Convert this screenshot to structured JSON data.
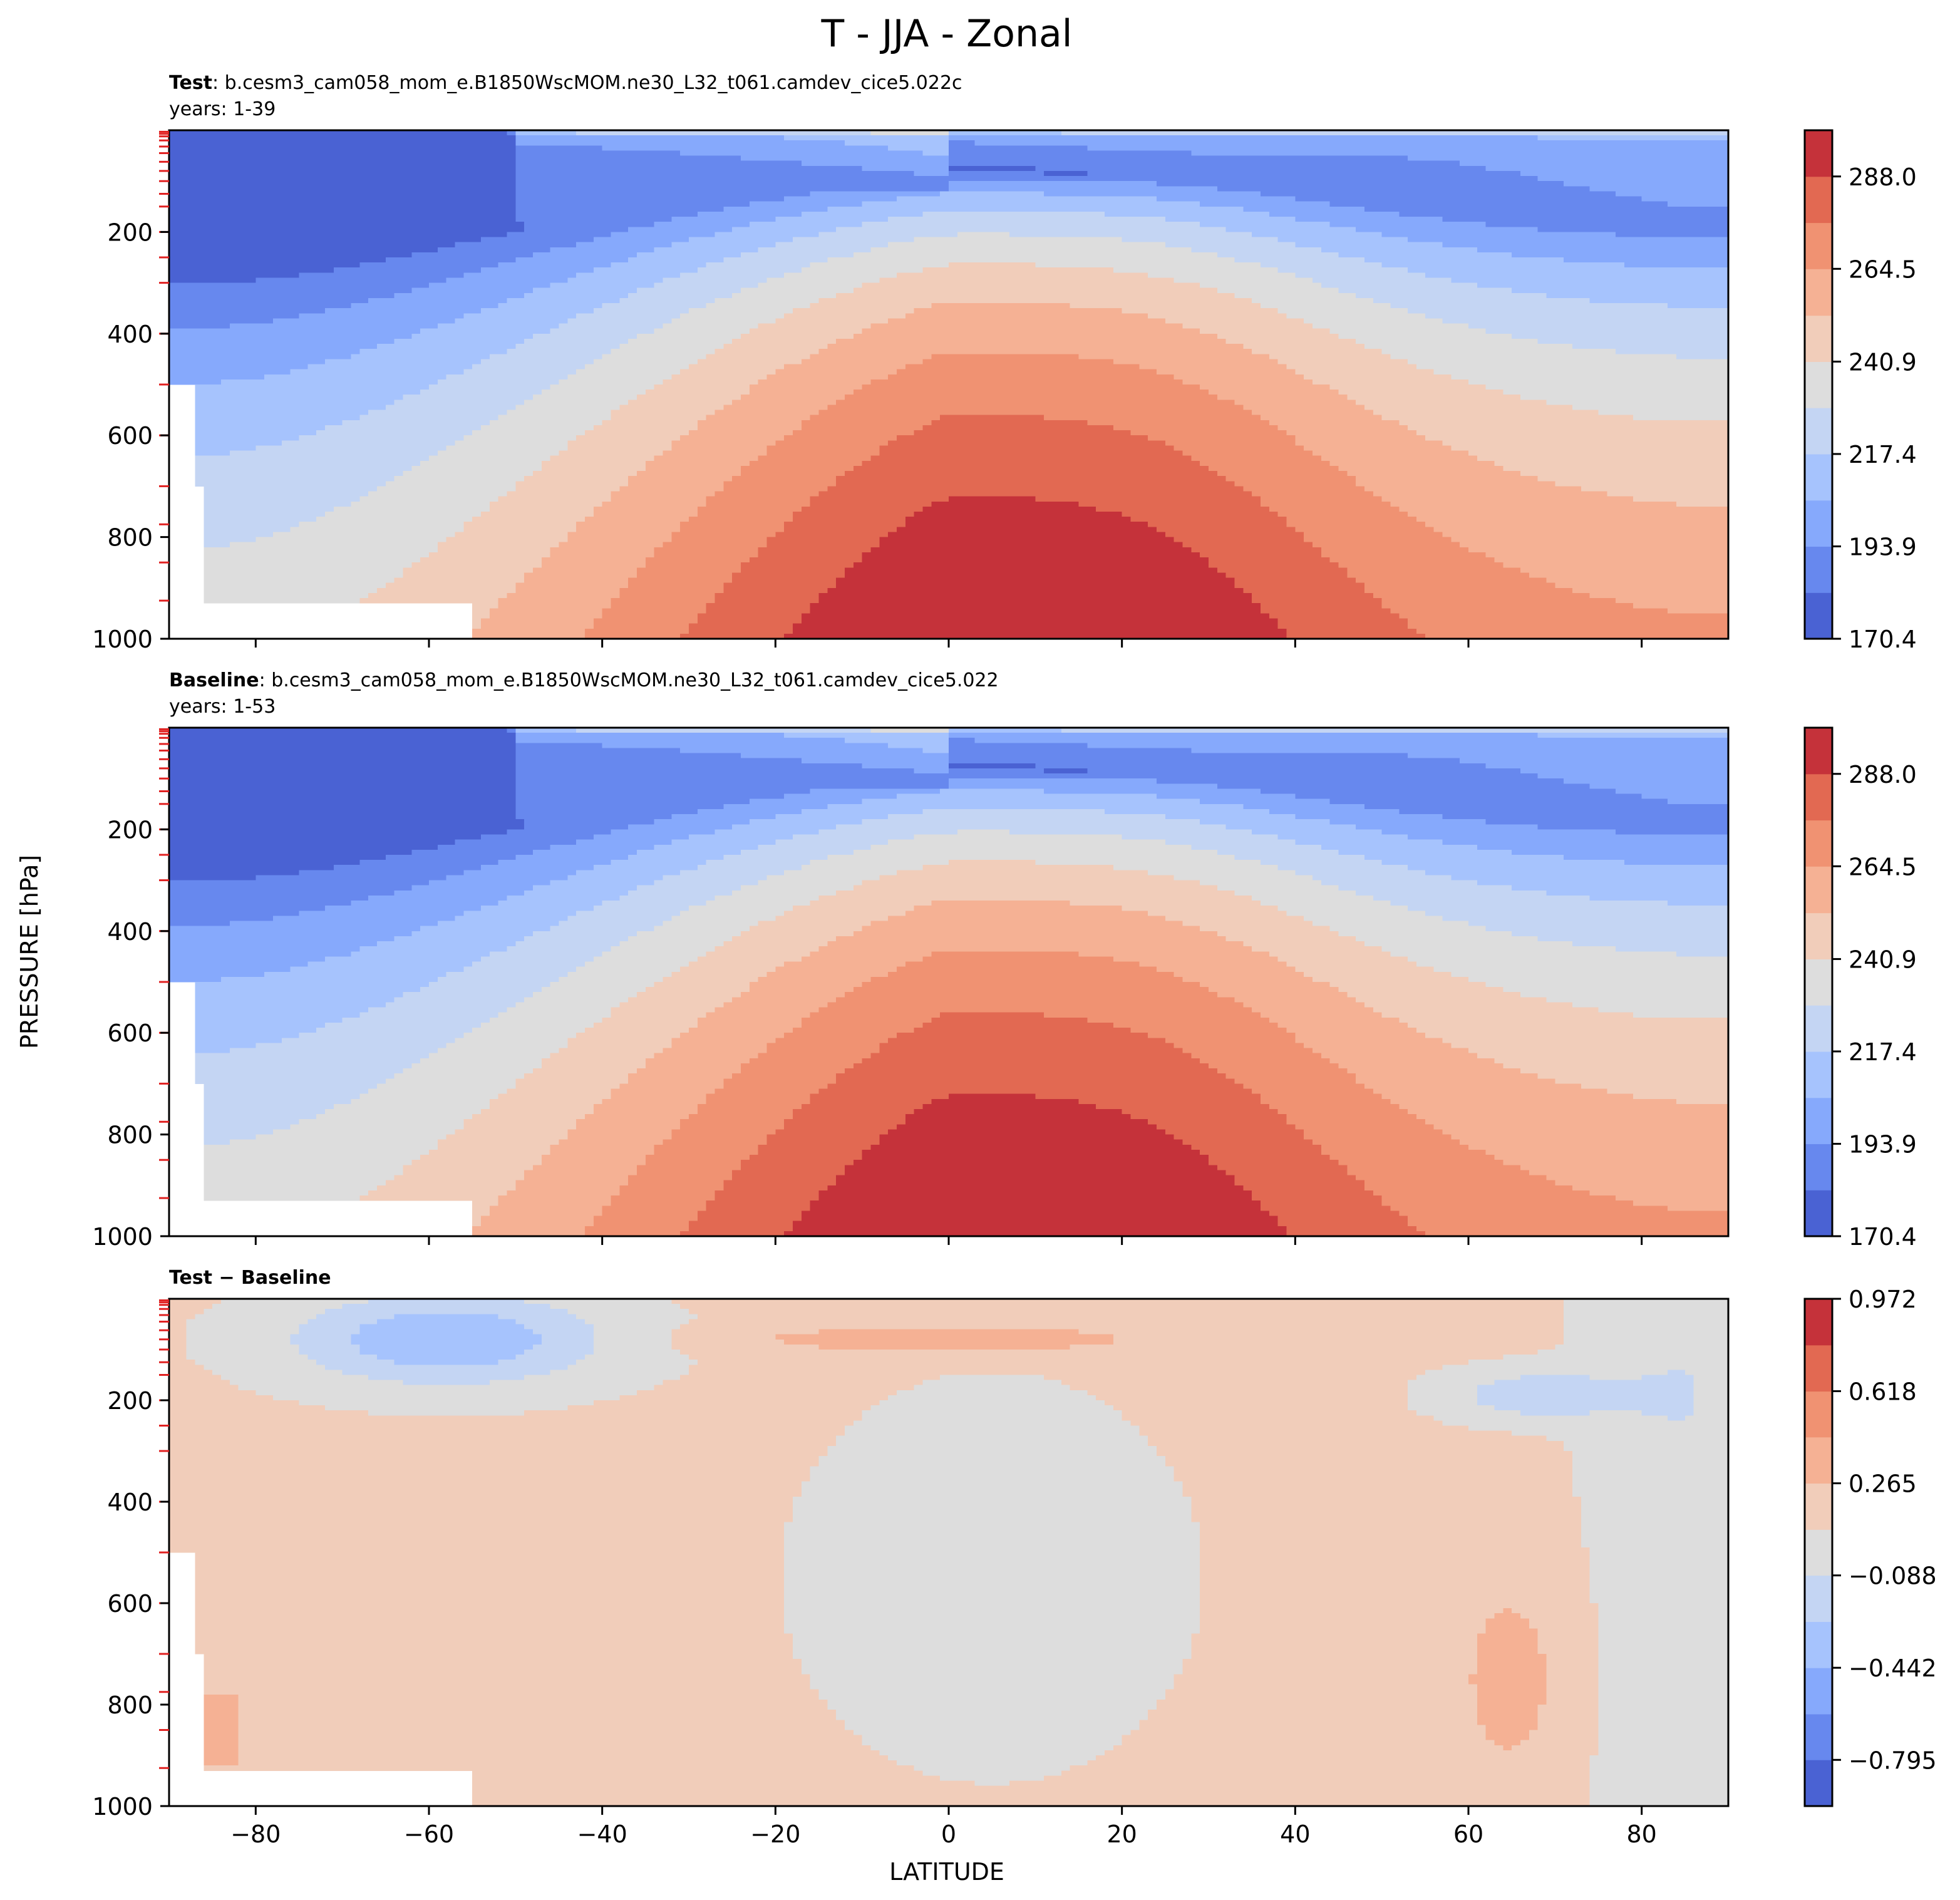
{
  "figure": {
    "title": "T - JJA - Zonal",
    "ylabel": "PRESSURE [hPa]",
    "xlabel": "LATITUDE"
  },
  "chart_data": [
    {
      "type": "contourf",
      "name": "test",
      "label_bold": "Test",
      "label_text": ":  b.cesm3_cam058_mom_e.B1850WscMOM.ne30_L32_t061.camdev_cice5.022c",
      "years": "years: 1-39",
      "xlim": [
        -90,
        90
      ],
      "ylim": [
        1000,
        0
      ],
      "x_ticks": [
        -80,
        -60,
        -40,
        -20,
        0,
        20,
        40,
        60,
        80
      ],
      "y_ticks": [
        200,
        400,
        600,
        800,
        1000
      ],
      "colorbar": {
        "levels": [
          170.4,
          182.15,
          193.9,
          205.65,
          217.4,
          229.15,
          240.9,
          252.65,
          264.5,
          276.25,
          288.0,
          299.75
        ],
        "tick_labels": [
          "170.4",
          "193.9",
          "217.4",
          "240.9",
          "264.5",
          "288.0"
        ],
        "tick_values": [
          170.4,
          193.9,
          217.4,
          240.9,
          264.5,
          288.0
        ],
        "colors": [
          "#4a62d3",
          "#6788ee",
          "#86a9fc",
          "#a6c3fd",
          "#c4d5f3",
          "#dddddd",
          "#f1cdba",
          "#f5b194",
          "#f09272",
          "#e26952",
          "#c5323a"
        ]
      },
      "field": {
        "kind": "temperature",
        "equator_surface_K": 301,
        "pole_south_surface_K": 228,
        "pole_north_surface_K": 272
      },
      "model_levels_hPa": [
        3,
        7,
        12,
        20,
        32,
        45,
        62,
        80,
        100,
        125,
        150,
        200,
        250,
        300,
        400,
        500,
        600,
        700,
        775,
        850,
        925
      ]
    },
    {
      "type": "contourf",
      "name": "baseline",
      "label_bold": "Baseline",
      "label_text": ":  b.cesm3_cam058_mom_e.B1850WscMOM.ne30_L32_t061.camdev_cice5.022",
      "years": "years: 1-53",
      "xlim": [
        -90,
        90
      ],
      "ylim": [
        1000,
        0
      ],
      "x_ticks": [
        -80,
        -60,
        -40,
        -20,
        0,
        20,
        40,
        60,
        80
      ],
      "y_ticks": [
        200,
        400,
        600,
        800,
        1000
      ],
      "colorbar": {
        "levels": [
          170.4,
          182.15,
          193.9,
          205.65,
          217.4,
          229.15,
          240.9,
          252.65,
          264.5,
          276.25,
          288.0,
          299.75
        ],
        "tick_labels": [
          "170.4",
          "193.9",
          "217.4",
          "240.9",
          "264.5",
          "288.0"
        ],
        "tick_values": [
          170.4,
          193.9,
          217.4,
          240.9,
          264.5,
          288.0
        ],
        "colors": [
          "#4a62d3",
          "#6788ee",
          "#86a9fc",
          "#a6c3fd",
          "#c4d5f3",
          "#dddddd",
          "#f1cdba",
          "#f5b194",
          "#f09272",
          "#e26952",
          "#c5323a"
        ]
      },
      "field": {
        "kind": "temperature",
        "equator_surface_K": 301,
        "pole_south_surface_K": 228,
        "pole_north_surface_K": 272
      },
      "model_levels_hPa": [
        3,
        7,
        12,
        20,
        32,
        45,
        62,
        80,
        100,
        125,
        150,
        200,
        250,
        300,
        400,
        500,
        600,
        700,
        775,
        850,
        925
      ]
    },
    {
      "type": "contourf",
      "name": "difference",
      "label_bold": "Test − Baseline",
      "label_text": "",
      "years": "",
      "xlim": [
        -90,
        90
      ],
      "ylim": [
        1000,
        0
      ],
      "x_ticks": [
        -80,
        -60,
        -40,
        -20,
        0,
        20,
        40,
        60,
        80
      ],
      "x_tick_labels": [
        "−80",
        "−60",
        "−40",
        "−20",
        "0",
        "20",
        "40",
        "60",
        "80"
      ],
      "y_ticks": [
        200,
        400,
        600,
        800,
        1000
      ],
      "colorbar": {
        "levels": [
          -0.972,
          -0.795,
          -0.619,
          -0.442,
          -0.265,
          -0.088,
          0.088,
          0.265,
          0.442,
          0.618,
          0.795,
          0.972
        ],
        "tick_labels": [
          "−0.795",
          "−0.442",
          "−0.088",
          "0.265",
          "0.618",
          "0.972"
        ],
        "tick_values": [
          -0.795,
          -0.442,
          -0.088,
          0.265,
          0.618,
          0.972
        ],
        "colors": [
          "#4a62d3",
          "#6788ee",
          "#86a9fc",
          "#a6c3fd",
          "#c4d5f3",
          "#dddddd",
          "#f1cdba",
          "#f5b194",
          "#f09272",
          "#e26952",
          "#c5323a"
        ]
      },
      "field": {
        "kind": "difference"
      },
      "model_levels_hPa": [
        3,
        7,
        12,
        20,
        32,
        45,
        62,
        80,
        100,
        125,
        150,
        200,
        250,
        300,
        400,
        500,
        600,
        700,
        775,
        850,
        925
      ]
    }
  ]
}
